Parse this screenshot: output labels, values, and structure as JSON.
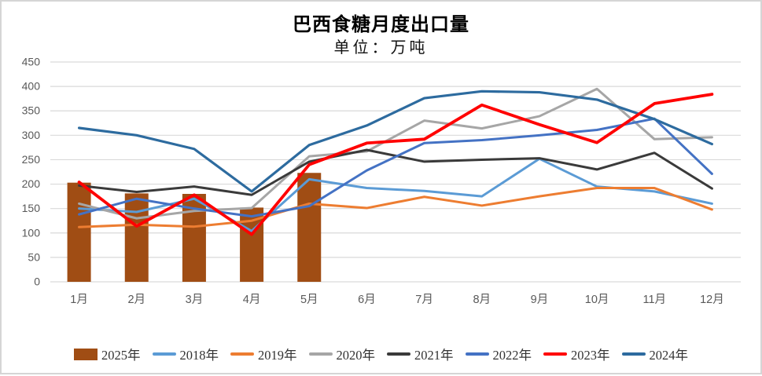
{
  "chart": {
    "title": "巴西食糖月度出口量",
    "subtitle": "单位：万吨",
    "chart_data": {
      "type": "combo-bar-line",
      "categories": [
        "1月",
        "2月",
        "3月",
        "4月",
        "5月",
        "6月",
        "7月",
        "8月",
        "9月",
        "10月",
        "11月",
        "12月"
      ],
      "y_axis": {
        "min": 0,
        "max": 450,
        "step": 50
      },
      "grid": true,
      "legend_position": "bottom",
      "bar_series": {
        "name": "2025年",
        "color": "#A04D14",
        "values": [
          203,
          181,
          180,
          152,
          223
        ]
      },
      "line_series": [
        {
          "name": "2018年",
          "color": "#5B9BD5",
          "width": 3,
          "values": [
            150,
            143,
            170,
            104,
            210,
            192,
            186,
            175,
            252,
            195,
            185,
            160
          ]
        },
        {
          "name": "2019年",
          "color": "#ED7D31",
          "width": 3,
          "values": [
            112,
            117,
            113,
            125,
            160,
            151,
            174,
            156,
            175,
            192,
            192,
            148
          ]
        },
        {
          "name": "2020年",
          "color": "#A6A6A6",
          "width": 3,
          "values": [
            160,
            130,
            145,
            151,
            257,
            267,
            330,
            314,
            339,
            395,
            292,
            296
          ]
        },
        {
          "name": "2021年",
          "color": "#3A3A3A",
          "width": 3,
          "values": [
            197,
            184,
            195,
            178,
            246,
            270,
            246,
            250,
            253,
            230,
            264,
            191
          ]
        },
        {
          "name": "2022年",
          "color": "#4472C4",
          "width": 3,
          "values": [
            138,
            170,
            150,
            134,
            155,
            228,
            284,
            290,
            300,
            311,
            334,
            221
          ]
        },
        {
          "name": "2024年",
          "color": "#2D6B9F",
          "width": 3.2,
          "values": [
            315,
            300,
            272,
            185,
            280,
            320,
            376,
            390,
            388,
            373,
            333,
            282
          ]
        },
        {
          "name": "2023年",
          "color": "#FF0000",
          "width": 3.8,
          "values": [
            204,
            114,
            178,
            97,
            240,
            284,
            292,
            362,
            322,
            285,
            365,
            384
          ]
        }
      ],
      "legend_order": [
        "2025年",
        "2018年",
        "2019年",
        "2020年",
        "2021年",
        "2022年",
        "2023年",
        "2024年"
      ]
    },
    "style": {
      "grid_color": "#D9D9D9",
      "axis_label_color": "#595959"
    }
  }
}
